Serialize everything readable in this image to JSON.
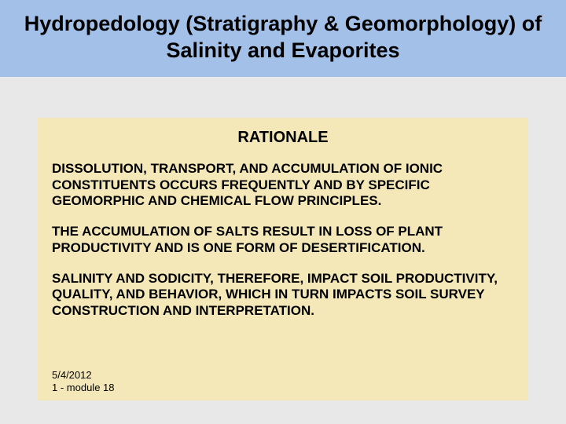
{
  "title": "Hydropedology (Stratigraphy & Geomorphology) of Salinity and Evaporites",
  "content": {
    "heading": "RATIONALE",
    "paragraphs": [
      "Dissolution, transport, and accumulation of ionic constituents occurs frequently and by specific geomorphic and chemical flow principles.",
      "The accumulation of salts result in loss of plant productivity and is one form of desertification.",
      "Salinity and sodicity, therefore, impact soil productivity, quality, and behavior, which in turn impacts soil survey construction and interpretation."
    ]
  },
  "footer": {
    "date": "5/4/2012",
    "page_module": "1 - module 18"
  },
  "colors": {
    "title_band_bg": "#a3c0e8",
    "page_bg": "#e8e8e8",
    "content_bg": "#f5e8b8",
    "text": "#000000"
  }
}
